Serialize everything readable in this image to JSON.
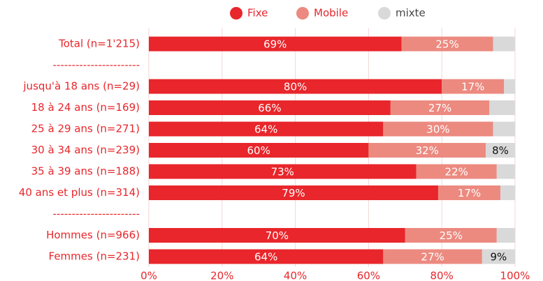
{
  "chart_data": {
    "type": "stacked-barh",
    "categories": [
      "Total (n=1'215)",
      "-----------------------",
      "jusqu'à 18 ans (n=29)",
      "18 à 24 ans (n=169)",
      "25 à 29 ans (n=271)",
      "30 à 34 ans (n=239)",
      "35 à 39 ans (n=188)",
      "40 ans et plus (n=314)",
      "-----------------------",
      "Hommes (n=966)",
      "Femmes (n=231)"
    ],
    "series": [
      {
        "name": "Fixe",
        "color": "#e8262b",
        "label_color": "#ffffff",
        "values": [
          69,
          null,
          80,
          66,
          64,
          60,
          73,
          79,
          null,
          70,
          64
        ],
        "value_labels": [
          "69%",
          null,
          "80%",
          "66%",
          "64%",
          "60%",
          "73%",
          "79%",
          null,
          "70%",
          "64%"
        ]
      },
      {
        "name": "Mobile",
        "color": "#ec8a80",
        "label_color": "#ffffff",
        "values": [
          25,
          null,
          17,
          27,
          30,
          32,
          22,
          17,
          null,
          25,
          27
        ],
        "value_labels": [
          "25%",
          null,
          "17%",
          "27%",
          "30%",
          "32%",
          "22%",
          "17%",
          null,
          "25%",
          "27%"
        ]
      },
      {
        "name": "mixte",
        "color": "#d9d9d9",
        "label_color": "#111111",
        "values": [
          6,
          null,
          3,
          7,
          6,
          8,
          5,
          4,
          null,
          5,
          9
        ],
        "value_labels": [
          null,
          null,
          null,
          null,
          null,
          "8%",
          null,
          null,
          null,
          null,
          "9%"
        ]
      }
    ],
    "xlim": [
      0,
      100
    ],
    "xticks": [
      {
        "value": 0,
        "label": "0%"
      },
      {
        "value": 20,
        "label": "20%"
      },
      {
        "value": 40,
        "label": "40%"
      },
      {
        "value": 60,
        "label": "60%"
      },
      {
        "value": 80,
        "label": "80%"
      },
      {
        "value": 100,
        "label": "100%"
      }
    ],
    "grid": true,
    "legend": "top"
  }
}
